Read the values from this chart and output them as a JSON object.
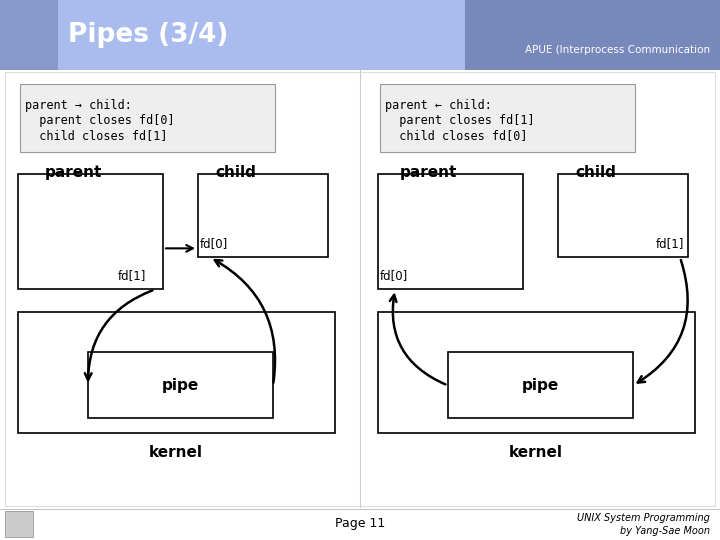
{
  "title": "Pipes (3/4)",
  "subtitle": "APUE (Interprocess Communication",
  "bg_color": "#ffffff",
  "header_color": "#aabbee",
  "header_dark": "#7788bb",
  "left_desc_line1": "parent → child:",
  "left_desc_line2": "  parent closes fd[0]",
  "left_desc_line3": "  child closes fd[1]",
  "right_desc_line1": "parent ← child:",
  "right_desc_line2": "  parent closes fd[1]",
  "right_desc_line3": "  child closes fd[0]",
  "footer_left": "Page 11",
  "footer_right_line1": "UNIX System Programming",
  "footer_right_line2": "by Yang-Sae Moon"
}
